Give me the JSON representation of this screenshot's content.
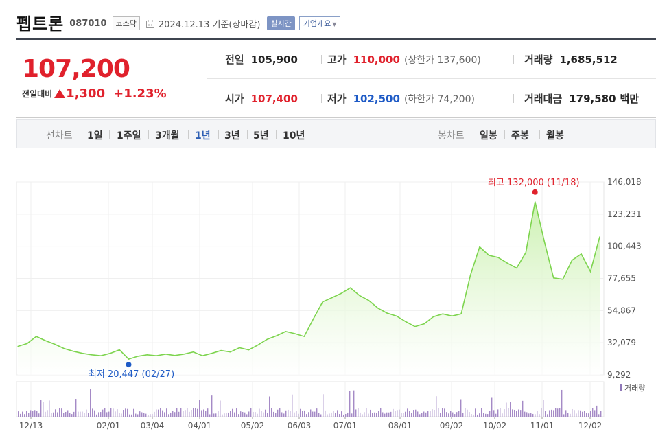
{
  "header": {
    "stock_name": "펩트론",
    "stock_code": "087010",
    "market": "코스닥",
    "date_text": "2024.12.13  기준(장마감)",
    "realtime_label": "실시간",
    "overview_label": "기업개요"
  },
  "quote": {
    "price": "107,200",
    "change_label": "전일대비",
    "change": "1,300",
    "change_pct": "+1.23%"
  },
  "stats": {
    "prev_label": "전일",
    "prev": "105,900",
    "high_label": "고가",
    "high": "110,000",
    "upper_limit": "(상한가 137,600)",
    "volume_label": "거래량",
    "volume": "1,685,512",
    "open_label": "시가",
    "open": "107,400",
    "low_label": "저가",
    "low": "102,500",
    "lower_limit": "(하한가 74,200)",
    "amount_label": "거래대금",
    "amount": "179,580",
    "amount_unit": "백만"
  },
  "period_bar": {
    "line_chart_label": "선차트",
    "periods": [
      "1일",
      "1주일",
      "3개월",
      "1년",
      "3년",
      "5년",
      "10년"
    ],
    "active_period": "1년",
    "candle_chart_label": "봉차트",
    "candles": [
      "일봉",
      "주봉",
      "월봉"
    ]
  },
  "colors": {
    "up": "#e0212c",
    "down": "#1f5bc6",
    "line": "#7dd44e",
    "fill": "#d8f5c4",
    "active_tab": "#2e5fb4"
  },
  "chart_data": {
    "type": "area",
    "x_tick_labels": [
      "12/13",
      "02/01",
      "03/04",
      "04/01",
      "05/02",
      "06/03",
      "07/01",
      "08/01",
      "09/02",
      "10/02",
      "11/01",
      "12/02"
    ],
    "y_tick_labels": [
      "146,018",
      "123,231",
      "100,443",
      "77,655",
      "54,867",
      "32,079",
      "9,292"
    ],
    "ylim": [
      9292,
      146018
    ],
    "max_annotation": "최고 132,000 (11/18)",
    "min_annotation": "최저 20,447 (02/27)",
    "volume_legend": "거래량",
    "price_series": [
      [
        "12/13",
        29500
      ],
      [
        "12/20",
        31500
      ],
      [
        "12/27",
        36500
      ],
      [
        "01/03",
        33500
      ],
      [
        "01/10",
        31000
      ],
      [
        "01/17",
        28000
      ],
      [
        "01/24",
        26000
      ],
      [
        "01/31",
        24500
      ],
      [
        "02/07",
        23500
      ],
      [
        "02/14",
        22800
      ],
      [
        "02/21",
        24500
      ],
      [
        "02/24",
        27000
      ],
      [
        "02/27",
        20447
      ],
      [
        "03/05",
        22500
      ],
      [
        "03/12",
        23500
      ],
      [
        "03/19",
        22800
      ],
      [
        "03/26",
        24000
      ],
      [
        "04/02",
        23000
      ],
      [
        "04/09",
        24000
      ],
      [
        "04/16",
        25500
      ],
      [
        "04/23",
        22800
      ],
      [
        "04/30",
        24500
      ],
      [
        "05/07",
        26500
      ],
      [
        "05/14",
        25500
      ],
      [
        "05/21",
        28500
      ],
      [
        "05/28",
        27000
      ],
      [
        "06/04",
        30500
      ],
      [
        "06/11",
        34500
      ],
      [
        "06/18",
        37000
      ],
      [
        "06/25",
        40000
      ],
      [
        "06/28",
        38500
      ],
      [
        "07/02",
        36500
      ],
      [
        "07/09",
        49000
      ],
      [
        "07/16",
        61000
      ],
      [
        "07/23",
        64000
      ],
      [
        "07/30",
        67000
      ],
      [
        "08/06",
        71000
      ],
      [
        "08/13",
        65500
      ],
      [
        "08/20",
        62000
      ],
      [
        "08/27",
        56500
      ],
      [
        "09/03",
        53000
      ],
      [
        "09/10",
        51000
      ],
      [
        "09/17",
        47000
      ],
      [
        "09/24",
        43500
      ],
      [
        "10/01",
        45500
      ],
      [
        "10/04",
        50500
      ],
      [
        "10/11",
        52500
      ],
      [
        "10/18",
        51000
      ],
      [
        "10/22",
        52500
      ],
      [
        "10/25",
        80000
      ],
      [
        "10/29",
        100000
      ],
      [
        "11/01",
        94000
      ],
      [
        "11/05",
        92500
      ],
      [
        "11/08",
        88500
      ],
      [
        "11/12",
        85000
      ],
      [
        "11/15",
        96000
      ],
      [
        "11/18",
        132000
      ],
      [
        "11/22",
        104000
      ],
      [
        "11/26",
        78000
      ],
      [
        "11/29",
        77000
      ],
      [
        "12/03",
        90500
      ],
      [
        "12/06",
        95000
      ],
      [
        "12/10",
        82500
      ],
      [
        "12/13",
        107200
      ]
    ]
  }
}
